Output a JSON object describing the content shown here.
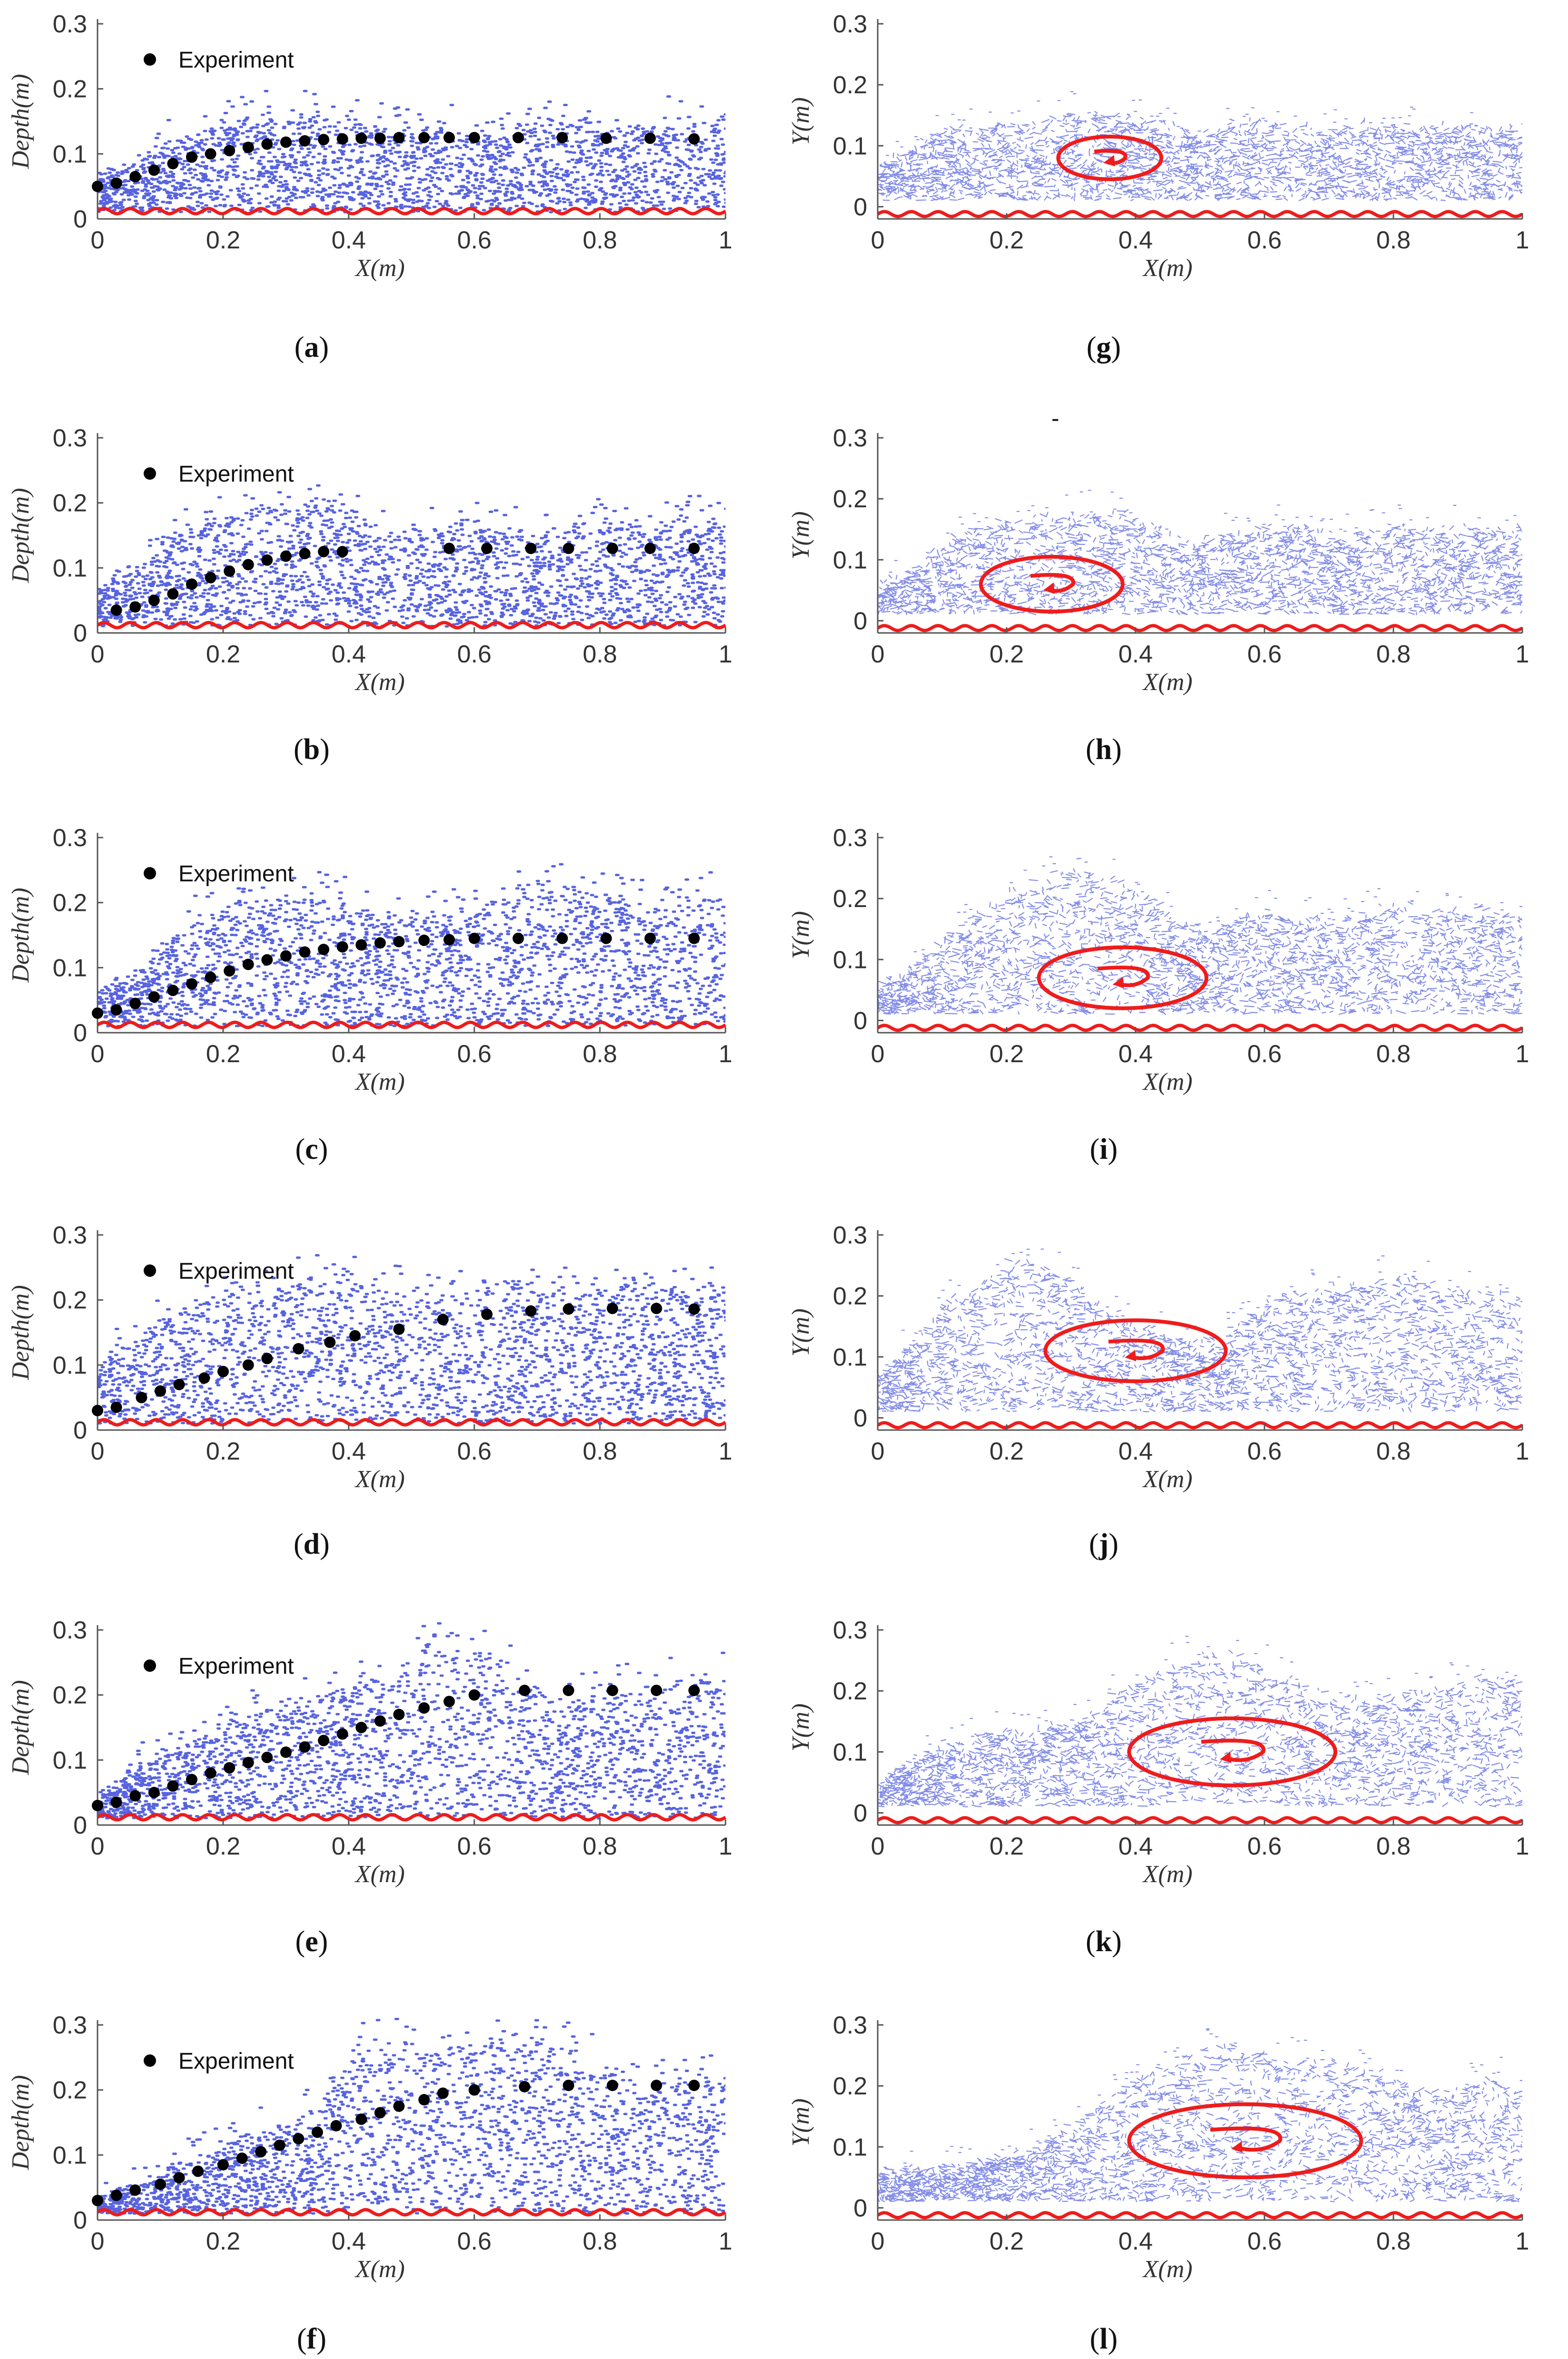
{
  "figure": {
    "legend_label": "Experiment",
    "stray_mark": "-",
    "colors": {
      "particles": "#1f2fd6",
      "bed": "#ee1c1c",
      "experiment": "#000000",
      "vortex": "#ee1c1c",
      "axis": "#555555"
    }
  },
  "chart_data": [
    {
      "id": "a",
      "caption": "a",
      "type": "scatter",
      "title": "",
      "xlabel": "X(m)",
      "ylabel": "Depth(m)",
      "xlim": [
        0,
        1
      ],
      "ylim": [
        0,
        0.3
      ],
      "xticks": [
        "0",
        "0.2",
        "0.4",
        "0.6",
        "0.8",
        "1"
      ],
      "yticks": [
        "0",
        "0.1",
        "0.2",
        "0.3"
      ],
      "legend": "Experiment",
      "surface_x": [
        0,
        0.05,
        0.1,
        0.15,
        0.2,
        0.25,
        0.3,
        0.35,
        0.4,
        0.45,
        0.5,
        0.55,
        0.6,
        0.65,
        0.7,
        0.75,
        0.8,
        0.85,
        0.9,
        0.95,
        1.0
      ],
      "surface_y": [
        0.07,
        0.08,
        0.11,
        0.13,
        0.15,
        0.16,
        0.16,
        0.16,
        0.15,
        0.14,
        0.14,
        0.14,
        0.13,
        0.14,
        0.15,
        0.15,
        0.14,
        0.14,
        0.15,
        0.15,
        0.14
      ],
      "experiment_x": [
        0.0,
        0.03,
        0.06,
        0.09,
        0.12,
        0.15,
        0.18,
        0.21,
        0.24,
        0.27,
        0.3,
        0.33,
        0.36,
        0.39,
        0.42,
        0.45,
        0.48,
        0.52,
        0.56,
        0.6,
        0.67,
        0.74,
        0.81,
        0.88,
        0.95
      ],
      "experiment_y": [
        0.05,
        0.055,
        0.065,
        0.075,
        0.085,
        0.095,
        0.1,
        0.105,
        0.11,
        0.115,
        0.118,
        0.12,
        0.122,
        0.123,
        0.124,
        0.124,
        0.125,
        0.125,
        0.125,
        0.125,
        0.125,
        0.125,
        0.124,
        0.124,
        0.123
      ]
    },
    {
      "id": "b",
      "caption": "b",
      "type": "scatter",
      "title": "",
      "xlabel": "X(m)",
      "ylabel": "Depth(m)",
      "xlim": [
        0,
        1
      ],
      "ylim": [
        0,
        0.3
      ],
      "xticks": [
        "0",
        "0.2",
        "0.4",
        "0.6",
        "0.8",
        "1"
      ],
      "yticks": [
        "0",
        "0.1",
        "0.2",
        "0.3"
      ],
      "legend": "Experiment",
      "surface_x": [
        0,
        0.05,
        0.1,
        0.15,
        0.2,
        0.25,
        0.3,
        0.35,
        0.4,
        0.45,
        0.5,
        0.55,
        0.6,
        0.65,
        0.7,
        0.75,
        0.8,
        0.85,
        0.9,
        0.95,
        1.0
      ],
      "surface_y": [
        0.07,
        0.1,
        0.14,
        0.17,
        0.18,
        0.19,
        0.2,
        0.2,
        0.19,
        0.16,
        0.15,
        0.16,
        0.17,
        0.16,
        0.15,
        0.16,
        0.17,
        0.17,
        0.17,
        0.18,
        0.17
      ],
      "experiment_x": [
        0.03,
        0.06,
        0.09,
        0.12,
        0.15,
        0.18,
        0.21,
        0.24,
        0.27,
        0.3,
        0.33,
        0.36,
        0.39,
        0.56,
        0.62,
        0.69,
        0.75,
        0.82,
        0.88,
        0.95
      ],
      "experiment_y": [
        0.035,
        0.04,
        0.05,
        0.06,
        0.075,
        0.085,
        0.095,
        0.105,
        0.112,
        0.118,
        0.122,
        0.125,
        0.125,
        0.13,
        0.13,
        0.13,
        0.13,
        0.13,
        0.13,
        0.13
      ]
    },
    {
      "id": "c",
      "caption": "c",
      "type": "scatter",
      "title": "",
      "xlabel": "X(m)",
      "ylabel": "Depth(m)",
      "xlim": [
        0,
        1
      ],
      "ylim": [
        0,
        0.3
      ],
      "xticks": [
        "0",
        "0.2",
        "0.4",
        "0.6",
        "0.8",
        "1"
      ],
      "yticks": [
        "0",
        "0.1",
        "0.2",
        "0.3"
      ],
      "legend": "Experiment",
      "surface_x": [
        0,
        0.05,
        0.1,
        0.15,
        0.2,
        0.25,
        0.3,
        0.35,
        0.4,
        0.45,
        0.5,
        0.55,
        0.6,
        0.65,
        0.7,
        0.75,
        0.8,
        0.85,
        0.9,
        0.95,
        1.0
      ],
      "surface_y": [
        0.06,
        0.09,
        0.13,
        0.17,
        0.19,
        0.2,
        0.21,
        0.21,
        0.2,
        0.19,
        0.18,
        0.18,
        0.19,
        0.21,
        0.23,
        0.22,
        0.21,
        0.2,
        0.21,
        0.22,
        0.21
      ],
      "experiment_x": [
        0.0,
        0.03,
        0.06,
        0.09,
        0.12,
        0.15,
        0.18,
        0.21,
        0.24,
        0.27,
        0.3,
        0.33,
        0.36,
        0.39,
        0.42,
        0.45,
        0.48,
        0.52,
        0.56,
        0.6,
        0.67,
        0.74,
        0.81,
        0.88,
        0.95
      ],
      "experiment_y": [
        0.03,
        0.035,
        0.045,
        0.055,
        0.065,
        0.075,
        0.085,
        0.095,
        0.105,
        0.112,
        0.118,
        0.124,
        0.128,
        0.132,
        0.135,
        0.138,
        0.14,
        0.142,
        0.143,
        0.145,
        0.145,
        0.145,
        0.145,
        0.145,
        0.145
      ]
    },
    {
      "id": "d",
      "caption": "d",
      "type": "scatter",
      "title": "",
      "xlabel": "X(m)",
      "ylabel": "Depth(m)",
      "xlim": [
        0,
        1
      ],
      "ylim": [
        0,
        0.3
      ],
      "xticks": [
        "0",
        "0.2",
        "0.4",
        "0.6",
        "0.8",
        "1"
      ],
      "yticks": [
        "0",
        "0.1",
        "0.2",
        "0.3"
      ],
      "legend": "Experiment",
      "surface_x": [
        0,
        0.05,
        0.1,
        0.15,
        0.2,
        0.25,
        0.3,
        0.35,
        0.4,
        0.45,
        0.5,
        0.55,
        0.6,
        0.65,
        0.7,
        0.75,
        0.8,
        0.85,
        0.9,
        0.95,
        1.0
      ],
      "surface_y": [
        0.1,
        0.14,
        0.17,
        0.19,
        0.21,
        0.22,
        0.23,
        0.23,
        0.24,
        0.22,
        0.21,
        0.2,
        0.21,
        0.23,
        0.22,
        0.21,
        0.22,
        0.23,
        0.22,
        0.22,
        0.21
      ],
      "experiment_x": [
        0.0,
        0.03,
        0.07,
        0.1,
        0.13,
        0.17,
        0.2,
        0.24,
        0.27,
        0.32,
        0.37,
        0.41,
        0.48,
        0.55,
        0.62,
        0.69,
        0.75,
        0.82,
        0.89,
        0.95
      ],
      "experiment_y": [
        0.03,
        0.035,
        0.05,
        0.06,
        0.07,
        0.08,
        0.09,
        0.1,
        0.11,
        0.125,
        0.135,
        0.145,
        0.155,
        0.17,
        0.178,
        0.183,
        0.186,
        0.187,
        0.187,
        0.186
      ]
    },
    {
      "id": "e",
      "caption": "e",
      "type": "scatter",
      "title": "",
      "xlabel": "X(m)",
      "ylabel": "Depth(m)",
      "xlim": [
        0,
        1
      ],
      "ylim": [
        0,
        0.3
      ],
      "xticks": [
        "0",
        "0.2",
        "0.4",
        "0.6",
        "0.8",
        "1"
      ],
      "yticks": [
        "0",
        "0.1",
        "0.2",
        "0.3"
      ],
      "legend": "Experiment",
      "surface_x": [
        0,
        0.05,
        0.1,
        0.15,
        0.2,
        0.25,
        0.3,
        0.35,
        0.4,
        0.45,
        0.5,
        0.55,
        0.6,
        0.65,
        0.7,
        0.75,
        0.8,
        0.85,
        0.9,
        0.95,
        1.0
      ],
      "surface_y": [
        0.05,
        0.08,
        0.11,
        0.13,
        0.15,
        0.17,
        0.18,
        0.2,
        0.22,
        0.24,
        0.26,
        0.28,
        0.27,
        0.24,
        0.21,
        0.19,
        0.2,
        0.21,
        0.22,
        0.23,
        0.23
      ],
      "experiment_x": [
        0.0,
        0.03,
        0.06,
        0.09,
        0.12,
        0.15,
        0.18,
        0.21,
        0.24,
        0.27,
        0.3,
        0.33,
        0.36,
        0.39,
        0.42,
        0.45,
        0.48,
        0.52,
        0.56,
        0.6,
        0.68,
        0.75,
        0.82,
        0.89,
        0.95
      ],
      "experiment_y": [
        0.03,
        0.035,
        0.045,
        0.05,
        0.06,
        0.07,
        0.08,
        0.088,
        0.096,
        0.104,
        0.112,
        0.12,
        0.13,
        0.14,
        0.15,
        0.16,
        0.17,
        0.18,
        0.19,
        0.2,
        0.207,
        0.207,
        0.207,
        0.207,
        0.207
      ]
    },
    {
      "id": "f",
      "caption": "f",
      "type": "scatter",
      "title": "",
      "xlabel": "X(m)",
      "ylabel": "Depth(m)",
      "xlim": [
        0,
        1
      ],
      "ylim": [
        0,
        0.3
      ],
      "xticks": [
        "0",
        "0.2",
        "0.4",
        "0.6",
        "0.8",
        "1"
      ],
      "yticks": [
        "0",
        "0.1",
        "0.2",
        "0.3"
      ],
      "legend": "Experiment",
      "surface_x": [
        0,
        0.05,
        0.1,
        0.15,
        0.2,
        0.25,
        0.3,
        0.35,
        0.4,
        0.45,
        0.5,
        0.55,
        0.6,
        0.65,
        0.7,
        0.75,
        0.8,
        0.85,
        0.9,
        0.95,
        1.0
      ],
      "surface_y": [
        0.03,
        0.05,
        0.07,
        0.09,
        0.11,
        0.13,
        0.15,
        0.17,
        0.26,
        0.27,
        0.27,
        0.26,
        0.27,
        0.28,
        0.28,
        0.27,
        0.24,
        0.22,
        0.21,
        0.23,
        0.22
      ],
      "experiment_x": [
        0.0,
        0.03,
        0.06,
        0.1,
        0.13,
        0.16,
        0.2,
        0.23,
        0.26,
        0.29,
        0.32,
        0.35,
        0.38,
        0.42,
        0.45,
        0.48,
        0.52,
        0.55,
        0.6,
        0.68,
        0.75,
        0.82,
        0.89,
        0.95
      ],
      "experiment_y": [
        0.03,
        0.038,
        0.046,
        0.055,
        0.065,
        0.075,
        0.085,
        0.095,
        0.105,
        0.115,
        0.125,
        0.135,
        0.145,
        0.155,
        0.165,
        0.175,
        0.185,
        0.195,
        0.2,
        0.205,
        0.207,
        0.207,
        0.207,
        0.207
      ]
    },
    {
      "id": "g",
      "caption": "g",
      "type": "scatter",
      "title": "",
      "xlabel": "X(m)",
      "ylabel": "Y(m)",
      "xlim": [
        0,
        1
      ],
      "ylim": [
        -0.02,
        0.3
      ],
      "xticks": [
        "0",
        "0.2",
        "0.4",
        "0.6",
        "0.8",
        "1"
      ],
      "yticks": [
        "0",
        "0.1",
        "0.2",
        "0.3"
      ],
      "surface_x": [
        0,
        0.05,
        0.1,
        0.15,
        0.2,
        0.25,
        0.3,
        0.35,
        0.4,
        0.45,
        0.5,
        0.55,
        0.6,
        0.65,
        0.7,
        0.75,
        0.8,
        0.85,
        0.9,
        0.95,
        1.0
      ],
      "surface_y": [
        0.06,
        0.09,
        0.12,
        0.13,
        0.13,
        0.14,
        0.15,
        0.15,
        0.14,
        0.13,
        0.12,
        0.13,
        0.14,
        0.13,
        0.12,
        0.13,
        0.13,
        0.13,
        0.13,
        0.13,
        0.12
      ],
      "vortex": {
        "cx": 0.36,
        "cy": 0.08,
        "rx": 0.08,
        "ry": 0.035
      }
    },
    {
      "id": "h",
      "caption": "h",
      "type": "scatter",
      "title": "",
      "xlabel": "X(m)",
      "ylabel": "Y(m)",
      "xlim": [
        0,
        1
      ],
      "ylim": [
        -0.02,
        0.3
      ],
      "xticks": [
        "0",
        "0.2",
        "0.4",
        "0.6",
        "0.8",
        "1"
      ],
      "yticks": [
        "0",
        "0.1",
        "0.2",
        "0.3"
      ],
      "surface_x": [
        0,
        0.05,
        0.1,
        0.15,
        0.2,
        0.25,
        0.3,
        0.35,
        0.4,
        0.45,
        0.5,
        0.55,
        0.6,
        0.65,
        0.7,
        0.75,
        0.8,
        0.85,
        0.9,
        0.95,
        1.0
      ],
      "surface_y": [
        0.05,
        0.08,
        0.12,
        0.15,
        0.16,
        0.17,
        0.17,
        0.18,
        0.17,
        0.14,
        0.13,
        0.14,
        0.15,
        0.15,
        0.14,
        0.14,
        0.15,
        0.15,
        0.15,
        0.15,
        0.15
      ],
      "vortex": {
        "cx": 0.27,
        "cy": 0.06,
        "rx": 0.11,
        "ry": 0.045
      }
    },
    {
      "id": "i",
      "caption": "i",
      "type": "scatter",
      "title": "",
      "xlabel": "X(m)",
      "ylabel": "Y(m)",
      "xlim": [
        0,
        1
      ],
      "ylim": [
        -0.02,
        0.3
      ],
      "xticks": [
        "0",
        "0.2",
        "0.4",
        "0.6",
        "0.8",
        "1"
      ],
      "yticks": [
        "0",
        "0.1",
        "0.2",
        "0.3"
      ],
      "surface_x": [
        0,
        0.05,
        0.1,
        0.15,
        0.2,
        0.25,
        0.3,
        0.35,
        0.4,
        0.45,
        0.5,
        0.55,
        0.6,
        0.65,
        0.7,
        0.75,
        0.8,
        0.85,
        0.9,
        0.95,
        1.0
      ],
      "surface_y": [
        0.05,
        0.08,
        0.13,
        0.17,
        0.2,
        0.23,
        0.25,
        0.24,
        0.21,
        0.17,
        0.15,
        0.16,
        0.18,
        0.17,
        0.16,
        0.17,
        0.19,
        0.18,
        0.18,
        0.18,
        0.17
      ],
      "vortex": {
        "cx": 0.38,
        "cy": 0.07,
        "rx": 0.13,
        "ry": 0.05
      }
    },
    {
      "id": "j",
      "caption": "j",
      "type": "scatter",
      "title": "",
      "xlabel": "X(m)",
      "ylabel": "Y(m)",
      "xlim": [
        0,
        1
      ],
      "ylim": [
        -0.02,
        0.3
      ],
      "xticks": [
        "0",
        "0.2",
        "0.4",
        "0.6",
        "0.8",
        "1"
      ],
      "yticks": [
        "0",
        "0.1",
        "0.2",
        "0.3"
      ],
      "surface_x": [
        0,
        0.05,
        0.1,
        0.15,
        0.2,
        0.25,
        0.3,
        0.35,
        0.4,
        0.45,
        0.5,
        0.55,
        0.6,
        0.65,
        0.7,
        0.75,
        0.8,
        0.85,
        0.9,
        0.95,
        1.0
      ],
      "surface_y": [
        0.06,
        0.12,
        0.18,
        0.22,
        0.26,
        0.25,
        0.22,
        0.18,
        0.15,
        0.13,
        0.12,
        0.14,
        0.18,
        0.2,
        0.21,
        0.22,
        0.23,
        0.22,
        0.21,
        0.2,
        0.2
      ],
      "vortex": {
        "cx": 0.4,
        "cy": 0.11,
        "rx": 0.14,
        "ry": 0.05
      }
    },
    {
      "id": "k",
      "caption": "k",
      "type": "scatter",
      "title": "",
      "xlabel": "X(m)",
      "ylabel": "Y(m)",
      "xlim": [
        0,
        1
      ],
      "ylim": [
        -0.02,
        0.3
      ],
      "xticks": [
        "0",
        "0.2",
        "0.4",
        "0.6",
        "0.8",
        "1"
      ],
      "yticks": [
        "0",
        "0.1",
        "0.2",
        "0.3"
      ],
      "surface_x": [
        0,
        0.05,
        0.1,
        0.15,
        0.2,
        0.25,
        0.3,
        0.35,
        0.4,
        0.45,
        0.5,
        0.55,
        0.6,
        0.65,
        0.7,
        0.75,
        0.8,
        0.85,
        0.9,
        0.95,
        1.0
      ],
      "surface_y": [
        0.04,
        0.08,
        0.11,
        0.12,
        0.13,
        0.13,
        0.15,
        0.18,
        0.21,
        0.24,
        0.26,
        0.26,
        0.24,
        0.21,
        0.19,
        0.18,
        0.19,
        0.2,
        0.21,
        0.22,
        0.21
      ],
      "vortex": {
        "cx": 0.55,
        "cy": 0.1,
        "rx": 0.16,
        "ry": 0.055
      }
    },
    {
      "id": "l",
      "caption": "l",
      "type": "scatter",
      "title": "",
      "xlabel": "X(m)",
      "ylabel": "Y(m)",
      "xlim": [
        0,
        1
      ],
      "ylim": [
        -0.02,
        0.3
      ],
      "xticks": [
        "0",
        "0.2",
        "0.4",
        "0.6",
        "0.8",
        "1"
      ],
      "yticks": [
        "0",
        "0.1",
        "0.2",
        "0.3"
      ],
      "surface_x": [
        0,
        0.05,
        0.1,
        0.15,
        0.2,
        0.25,
        0.3,
        0.35,
        0.4,
        0.45,
        0.5,
        0.55,
        0.6,
        0.65,
        0.7,
        0.75,
        0.8,
        0.85,
        0.9,
        0.95,
        1.0
      ],
      "surface_y": [
        0.05,
        0.06,
        0.06,
        0.07,
        0.08,
        0.1,
        0.13,
        0.17,
        0.21,
        0.24,
        0.26,
        0.26,
        0.25,
        0.24,
        0.24,
        0.23,
        0.21,
        0.18,
        0.2,
        0.21,
        0.2
      ],
      "vortex": {
        "cx": 0.57,
        "cy": 0.11,
        "rx": 0.18,
        "ry": 0.06
      }
    }
  ]
}
